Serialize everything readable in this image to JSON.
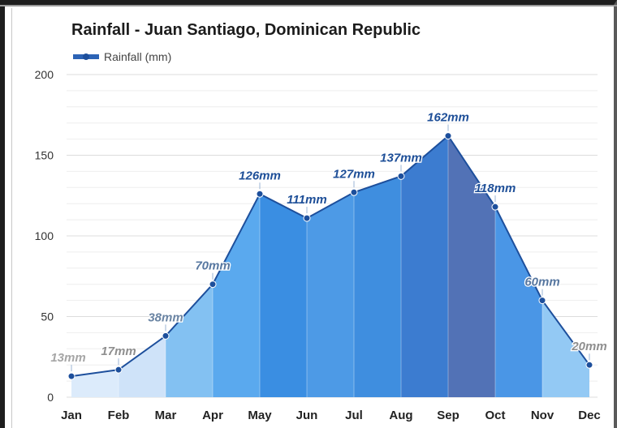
{
  "chart_data": {
    "type": "area",
    "title": "Rainfall - Juan Santiago, Dominican Republic",
    "legend": {
      "label": "Rainfall (mm)",
      "placement": "top-left"
    },
    "categories": [
      "Jan",
      "Feb",
      "Mar",
      "Apr",
      "May",
      "Jun",
      "Jul",
      "Aug",
      "Sep",
      "Oct",
      "Nov",
      "Dec"
    ],
    "series": [
      {
        "name": "Rainfall (mm)",
        "values": [
          13,
          17,
          38,
          70,
          126,
          111,
          127,
          137,
          162,
          118,
          60,
          20
        ],
        "data_labels": [
          "13mm",
          "17mm",
          "38mm",
          "70mm",
          "126mm",
          "111mm",
          "127mm",
          "137mm",
          "162mm",
          "118mm",
          "60mm",
          "20mm"
        ]
      }
    ],
    "yticks": [
      "200",
      "150",
      "100",
      "50",
      "0"
    ],
    "ylim": [
      0,
      200
    ],
    "grid": true,
    "colors": {
      "line": "#1d4f9c",
      "point": "#1d4f9c",
      "segments": [
        "#dcebfb",
        "#cfe3f9",
        "#83c1f2",
        "#5aa9ee",
        "#3a8ee2",
        "#4d9ae6",
        "#3f8edf",
        "#3c7cd0",
        "#5272b6",
        "#4a96e6",
        "#93c9f4",
        "#dcebfb"
      ],
      "labels": [
        "#a6a6a6",
        "#8f8f8f",
        "#6a84a3",
        "#5777a0",
        "#1e4f98",
        "#1e4f98",
        "#1e4f98",
        "#1e4f98",
        "#1e4f98",
        "#1e4f98",
        "#5777a0",
        "#8f8f8f"
      ]
    }
  }
}
